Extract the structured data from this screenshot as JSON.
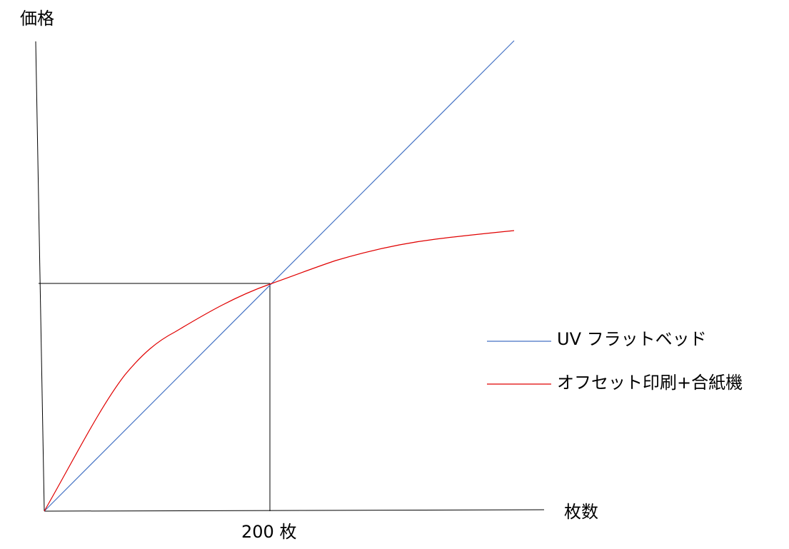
{
  "axes": {
    "y_label": "価格",
    "x_label": "枚数",
    "x_marker": "200 枚"
  },
  "legend": [
    {
      "label": "UV フラットベッド"
    },
    {
      "label": "オフセット印刷+合紙機"
    }
  ]
}
